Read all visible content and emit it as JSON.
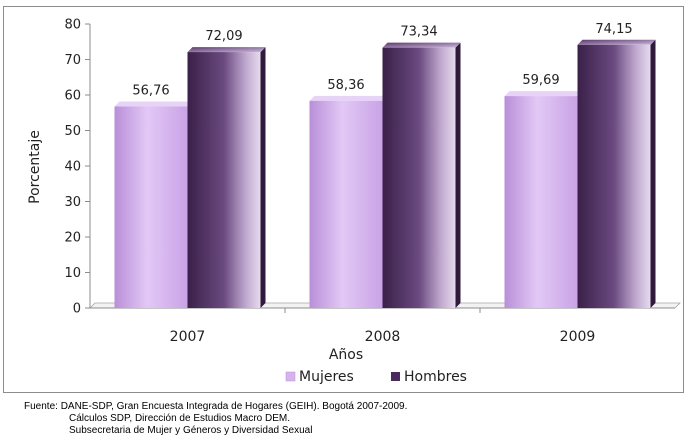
{
  "chart_data": {
    "type": "bar",
    "title": "",
    "xlabel": "Años",
    "ylabel": "Porcentaje",
    "categories": [
      "2007",
      "2008",
      "2009"
    ],
    "series": [
      {
        "name": "Mujeres",
        "values": [
          56.76,
          58.36,
          59.69
        ],
        "value_labels": [
          "56,76",
          "58,36",
          "59,69"
        ]
      },
      {
        "name": "Hombres",
        "values": [
          72.09,
          73.34,
          74.15
        ],
        "value_labels": [
          "72,09",
          "73,34",
          "74,15"
        ]
      }
    ],
    "ylim": [
      0,
      80
    ],
    "yticks": [
      0,
      10,
      20,
      30,
      40,
      50,
      60,
      70,
      80
    ],
    "grid": false,
    "legend_position": "bottom",
    "colors": {
      "Mujeres": "#d6b3ef",
      "Hombres": "#4b2b5e"
    }
  },
  "source_lines": [
    "Fuente: DANE-SDP, Gran Encuesta Integrada de Hogares (GEIH). Bogotá 2007-2009.",
    "Cálculos SDP, Dirección de Estudios Macro DEM.",
    "Subsecretaria  de Mujer y Géneros y Diversidad Sexual"
  ]
}
